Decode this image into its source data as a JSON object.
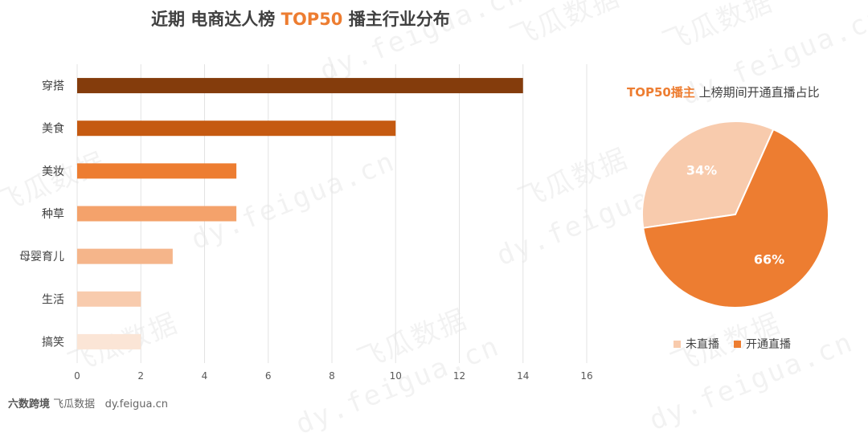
{
  "title": {
    "part1": "近期 电商达人榜 ",
    "part2": "TOP50",
    "part3": " 播主行业分布"
  },
  "chart_data": [
    {
      "type": "bar",
      "orientation": "horizontal",
      "categories": [
        "穿搭",
        "美食",
        "美妆",
        "种草",
        "母婴育儿",
        "生活",
        "搞笑"
      ],
      "values": [
        14,
        10,
        5,
        5,
        3,
        2,
        2
      ],
      "colors": [
        "#843C0C",
        "#C55A11",
        "#ED7D31",
        "#F4A26B",
        "#F5B58A",
        "#F8CBAD",
        "#FBE5D6"
      ],
      "xlim": [
        0,
        16
      ],
      "xticks": [
        0,
        2,
        4,
        6,
        8,
        10,
        12,
        14,
        16
      ],
      "grid": true
    },
    {
      "type": "pie",
      "title_accent": "TOP50播主",
      "title_rest": " 上榜期间开通直播占比",
      "labels": [
        "未直播",
        "开通直播"
      ],
      "values": [
        34,
        66
      ],
      "display": [
        "34%",
        "66%"
      ],
      "colors": [
        "#F8CBAD",
        "#ED7D31"
      ],
      "legend": "bottom"
    }
  ],
  "source": {
    "logo": "飞瓜数据",
    "url": "dy.feigua.cn",
    "overlay_logo": "六数跨境"
  },
  "watermark_texts": [
    "飞瓜数据",
    "dy.feigua.cn"
  ]
}
